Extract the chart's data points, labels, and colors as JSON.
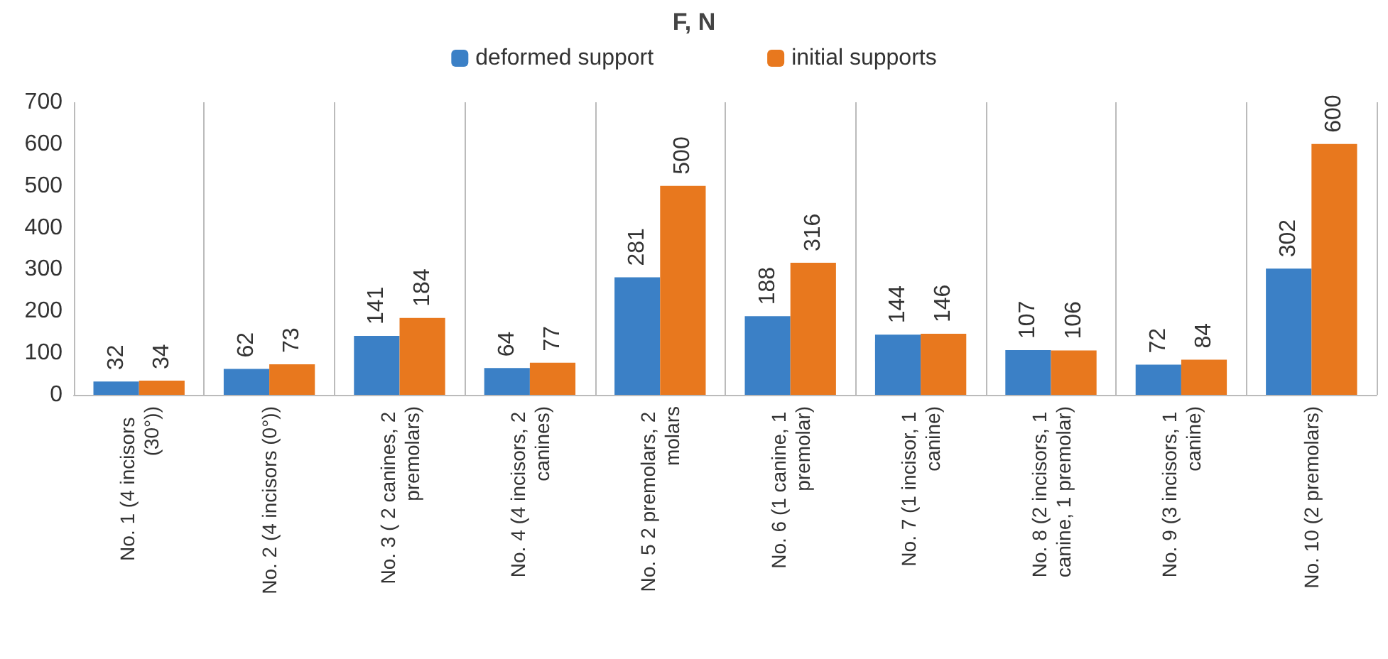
{
  "chart_data": {
    "type": "bar",
    "title": "F, N",
    "categories": [
      "No. 1 (4 incisors  (30°))",
      "No. 2 (4 incisors (0°))",
      "No. 3 ( 2 canines, 2 premolars)",
      "No. 4 (4 incisors, 2 canines)",
      "No. 5 2 premolars, 2 molars",
      "No. 6 (1 canine, 1 premolar)",
      "No. 7 (1 incisor, 1 canine)",
      "No. 8 (2 incisors, 1 canine, 1 premolar)",
      "No. 9 (3 incisors, 1 canine)",
      "No. 10 (2 premolars)"
    ],
    "series": [
      {
        "name": "deformed support",
        "color": "#3b80c6",
        "values": [
          32,
          62,
          141,
          64,
          281,
          188,
          144,
          107,
          72,
          302
        ]
      },
      {
        "name": "initial supports",
        "color": "#e8781e",
        "values": [
          34,
          73,
          184,
          77,
          500,
          316,
          146,
          106,
          84,
          600
        ]
      }
    ],
    "ylim": [
      0,
      700
    ],
    "yticks": [
      0,
      100,
      200,
      300,
      400,
      500,
      600,
      700
    ],
    "grid": "x",
    "legend": "top",
    "data_labels": true
  }
}
